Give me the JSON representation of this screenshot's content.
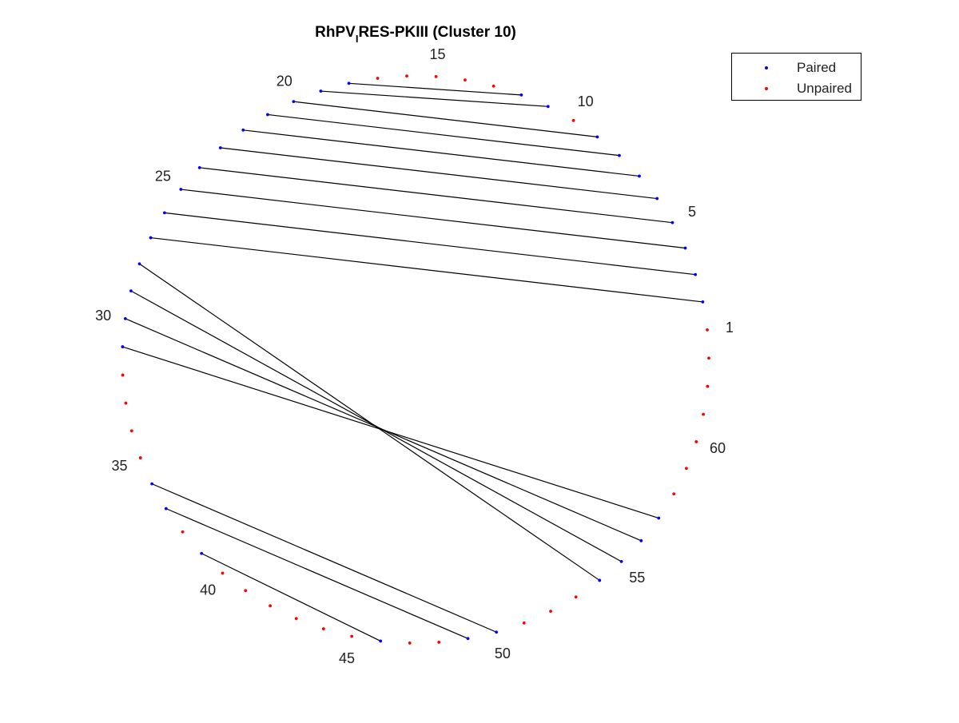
{
  "chart_data": {
    "type": "arc",
    "title_main": "RhPV",
    "title_sub": "I",
    "title_rest": "RES-PKIII (Cluster 10)",
    "n_nucleotides": 63,
    "tick_labels": [
      "1",
      "5",
      "10",
      "15",
      "20",
      "25",
      "30",
      "35",
      "40",
      "45",
      "50",
      "55",
      "60"
    ],
    "tick_positions": [
      1,
      5,
      10,
      15,
      20,
      25,
      30,
      35,
      40,
      45,
      50,
      55,
      60
    ],
    "pairs": [
      [
        2,
        27
      ],
      [
        3,
        26
      ],
      [
        4,
        25
      ],
      [
        5,
        24
      ],
      [
        6,
        23
      ],
      [
        7,
        22
      ],
      [
        8,
        21
      ],
      [
        9,
        20
      ],
      [
        11,
        19
      ],
      [
        12,
        18
      ],
      [
        28,
        54
      ],
      [
        29,
        55
      ],
      [
        30,
        56
      ],
      [
        31,
        57
      ],
      [
        36,
        50
      ],
      [
        37,
        49
      ],
      [
        39,
        46
      ]
    ],
    "unpaired": [
      1,
      10,
      13,
      14,
      15,
      16,
      17,
      32,
      33,
      34,
      35,
      38,
      40,
      41,
      42,
      43,
      44,
      45,
      47,
      48,
      51,
      52,
      53,
      58,
      59,
      60,
      61,
      62,
      63
    ],
    "legend": {
      "placement": "top-right",
      "entries": [
        {
          "label": "Paired",
          "color": "#0000ff"
        },
        {
          "label": "Unpaired",
          "color": "#ff0000"
        }
      ]
    },
    "colors": {
      "paired": "#0000ff",
      "unpaired": "#ff0000",
      "link": "#000000"
    },
    "grid": false
  }
}
